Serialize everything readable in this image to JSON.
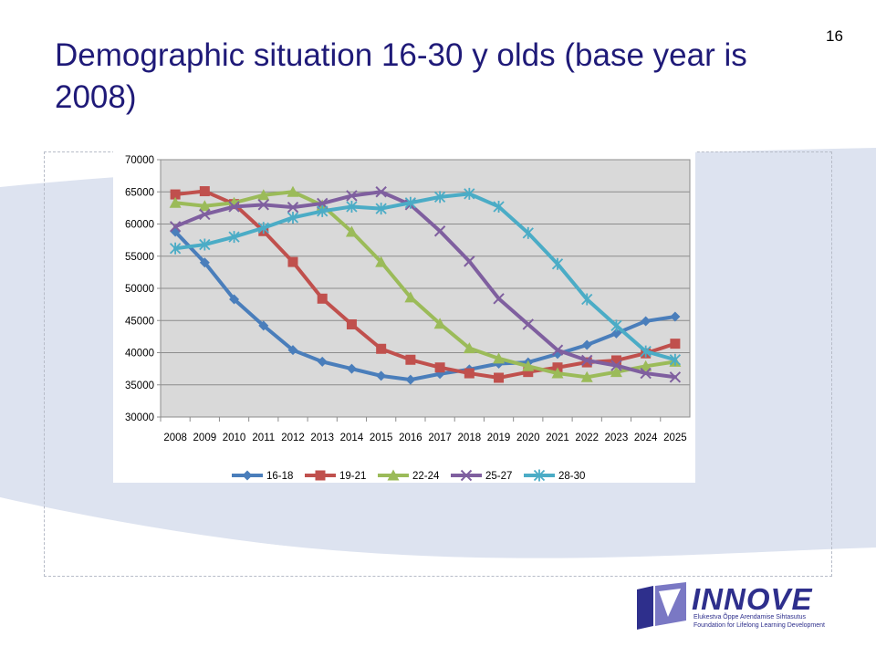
{
  "slide": {
    "title": "Demographic situation 16-30 y olds (base year is 2008)",
    "page_number": "16"
  },
  "logo": {
    "name": "INNOVE",
    "line1": "Elukestva Õppe Arendamise Sihtasutus",
    "line2": "Foundation for Lifelong Learning Development"
  },
  "chart_data": {
    "type": "line",
    "title": "",
    "xlabel": "",
    "ylabel": "",
    "ylim": [
      30000,
      70000
    ],
    "yticks": [
      30000,
      35000,
      40000,
      45000,
      50000,
      55000,
      60000,
      65000,
      70000
    ],
    "grid": true,
    "legend": "bottom",
    "categories": [
      "2008",
      "2009",
      "2010",
      "2011",
      "2012",
      "2013",
      "2014",
      "2015",
      "2016",
      "2017",
      "2018",
      "2019",
      "2020",
      "2021",
      "2022",
      "2023",
      "2024",
      "2025"
    ],
    "series": [
      {
        "name": "16-18",
        "color": "#4a7ebb",
        "marker": "diamond",
        "values": [
          58800,
          54000,
          48300,
          44200,
          40400,
          38600,
          37500,
          36400,
          35800,
          36700,
          37400,
          38300,
          38500,
          39800,
          41200,
          43000,
          44900,
          45600
        ]
      },
      {
        "name": "19-21",
        "color": "#c0504d",
        "marker": "square",
        "values": [
          64600,
          65100,
          63100,
          58900,
          54100,
          48400,
          44400,
          40600,
          38900,
          37700,
          36800,
          36100,
          37000,
          37700,
          38500,
          38800,
          39900,
          41400
        ]
      },
      {
        "name": "22-24",
        "color": "#9bbb59",
        "marker": "triangle",
        "values": [
          63300,
          62800,
          63300,
          64500,
          65000,
          62900,
          58800,
          54100,
          48600,
          44500,
          40700,
          39100,
          37900,
          36800,
          36200,
          37000,
          37900,
          38600
        ]
      },
      {
        "name": "25-27",
        "color": "#7f5f9f",
        "marker": "x",
        "values": [
          59600,
          61500,
          62700,
          63000,
          62600,
          63200,
          64400,
          65000,
          63000,
          58900,
          54200,
          48400,
          44400,
          40400,
          38800,
          38000,
          36800,
          36200
        ]
      },
      {
        "name": "28-30",
        "color": "#4bacc6",
        "marker": "star",
        "values": [
          56200,
          56800,
          58000,
          59400,
          61000,
          62000,
          62700,
          62400,
          63300,
          64200,
          64700,
          62700,
          58600,
          53800,
          48300,
          44200,
          40200,
          38900
        ]
      }
    ]
  }
}
